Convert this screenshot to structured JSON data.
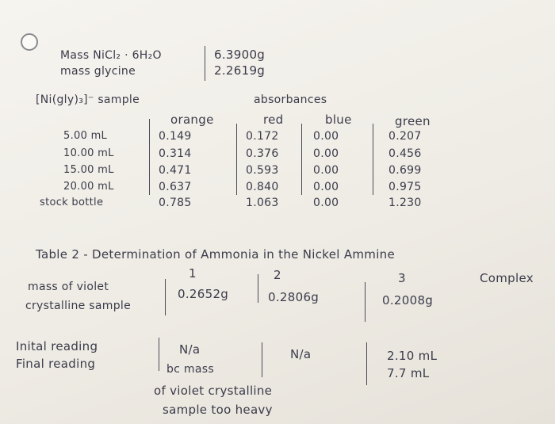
{
  "masses": {
    "rows": [
      [
        "Mass NiCl₂ · 6H₂O",
        "6.3900g"
      ],
      [
        "mass glycine",
        "2.2619g"
      ]
    ]
  },
  "table1": {
    "title": "[Ni(gly)₃]⁻ sample",
    "group_header": "absorbances",
    "columns": [
      "orange",
      "red",
      "blue",
      "green"
    ],
    "rows": [
      [
        "5.00 mL",
        "0.149",
        "0.172",
        "0.00",
        "0.207"
      ],
      [
        "10.00 mL",
        "0.314",
        "0.376",
        "0.00",
        "0.456"
      ],
      [
        "15.00 mL",
        "0.471",
        "0.593",
        "0.00",
        "0.699"
      ],
      [
        "20.00 mL",
        "0.637",
        "0.840",
        "0.00",
        "0.975"
      ],
      [
        "stock bottle",
        "0.785",
        "1.063",
        "0.00",
        "1.230"
      ]
    ]
  },
  "table2": {
    "title": "Table 2 - Determination of Ammonia in the Nickel Ammine",
    "title_end": "Complex",
    "columns": [
      "1",
      "2",
      "3"
    ],
    "mass_label": [
      "mass of violet",
      "crystalline sample"
    ],
    "masses": [
      "0.2652g",
      "0.2806g",
      "0.2008g"
    ],
    "reading_labels": [
      "Inital reading",
      "Final reading"
    ],
    "trial1": [
      "N/a",
      "bc mass",
      "of violet crystalline",
      "sample too heavy"
    ],
    "trial2": [
      "N/a"
    ],
    "trial3": [
      "2.10 mL",
      "7.7 mL"
    ]
  }
}
